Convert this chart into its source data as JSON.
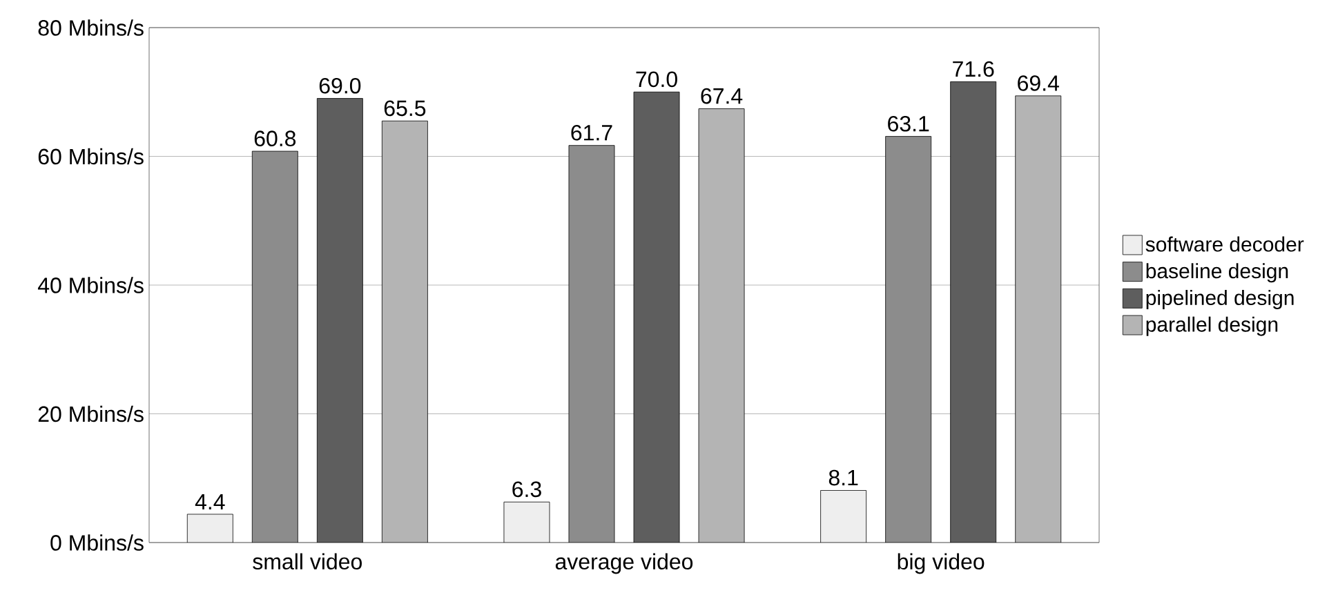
{
  "chart_data": {
    "type": "bar",
    "categories": [
      "small video",
      "average video",
      "big video"
    ],
    "series": [
      {
        "name": "software decoder",
        "color": "#eeeeee",
        "values": [
          4.4,
          6.3,
          8.1
        ],
        "value_labels": [
          "4.4",
          "6.3",
          "8.1"
        ]
      },
      {
        "name": "baseline design",
        "color": "#8c8c8c",
        "values": [
          60.8,
          61.7,
          63.1
        ],
        "value_labels": [
          "60.8",
          "61.7",
          "63.1"
        ]
      },
      {
        "name": "pipelined design",
        "color": "#5e5e5e",
        "values": [
          69.0,
          70.0,
          71.6
        ],
        "value_labels": [
          "69.0",
          "70.0",
          "71.6"
        ]
      },
      {
        "name": "parallel design",
        "color": "#b4b4b4",
        "values": [
          65.5,
          67.4,
          69.4
        ],
        "value_labels": [
          "65.5",
          "67.4",
          "69.4"
        ]
      }
    ],
    "ylim": [
      0,
      80
    ],
    "yticks": [
      {
        "value": 0,
        "label": "0 Mbins/s"
      },
      {
        "value": 20,
        "label": "20 Mbins/s"
      },
      {
        "value": 40,
        "label": "40 Mbins/s"
      },
      {
        "value": 60,
        "label": "60 Mbins/s"
      },
      {
        "value": 80,
        "label": "80 Mbins/s"
      }
    ],
    "grid": "y",
    "legend": "right"
  }
}
